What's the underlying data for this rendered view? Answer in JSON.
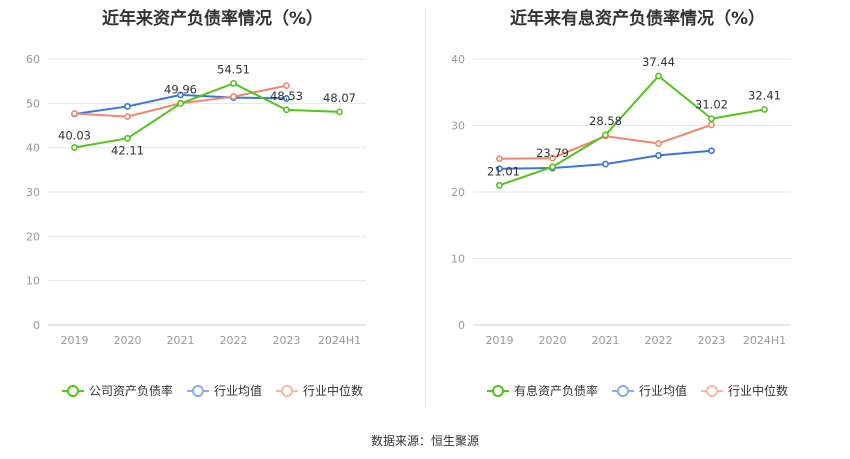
{
  "source_text": "数据来源：恒生聚源",
  "colors": {
    "company": "#52c41a",
    "avg": "#3a75d9",
    "median": "#f0876a"
  },
  "chart_data": [
    {
      "type": "line",
      "title": "近年来资产负债率情况（%）",
      "categories": [
        "2019",
        "2020",
        "2021",
        "2022",
        "2023",
        "2024H1"
      ],
      "ylim": [
        0,
        60
      ],
      "yticks": [
        "0",
        "10",
        "20",
        "30",
        "40",
        "50",
        "60"
      ],
      "grid": true,
      "legend_position": "bottom",
      "series": [
        {
          "name": "公司资产负债率",
          "color_key": "company",
          "values": [
            40.03,
            42.11,
            49.96,
            54.51,
            48.53,
            48.07
          ],
          "labels": [
            "40.03",
            "42.11",
            "49.96",
            "54.51",
            "48.53",
            "48.07"
          ]
        },
        {
          "name": "行业均值",
          "color_key": "avg",
          "values": [
            47.6,
            49.3,
            51.9,
            51.3,
            51.1,
            null
          ]
        },
        {
          "name": "行业中位数",
          "color_key": "median",
          "values": [
            47.7,
            47.0,
            50.0,
            51.5,
            54.0,
            null
          ]
        }
      ]
    },
    {
      "type": "line",
      "title": "近年来有息资产负债率情况（%）",
      "categories": [
        "2019",
        "2020",
        "2021",
        "2022",
        "2023",
        "2024H1"
      ],
      "ylim": [
        0,
        40
      ],
      "yticks": [
        "0",
        "10",
        "20",
        "30",
        "40"
      ],
      "grid": true,
      "legend_position": "bottom",
      "series": [
        {
          "name": "有息资产负债率",
          "color_key": "company",
          "values": [
            21.01,
            23.79,
            28.58,
            37.44,
            31.02,
            32.41
          ],
          "labels": [
            "21.01",
            "23.79",
            "28.58",
            "37.44",
            "31.02",
            "32.41"
          ]
        },
        {
          "name": "行业均值",
          "color_key": "avg",
          "values": [
            23.5,
            23.6,
            24.2,
            25.5,
            26.2,
            null
          ]
        },
        {
          "name": "行业中位数",
          "color_key": "median",
          "values": [
            25.0,
            25.1,
            28.4,
            27.3,
            30.1,
            null
          ]
        }
      ]
    }
  ]
}
